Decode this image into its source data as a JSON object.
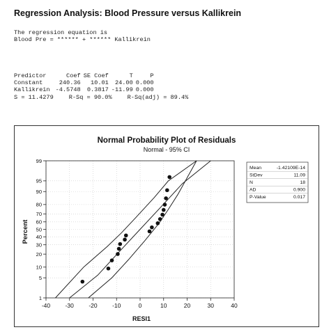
{
  "title": "Regression Analysis: Blood Pressure versus Kallikrein",
  "equation": {
    "line1": "The regression equation is",
    "line2": "Blood Pre = ****** + ****** Kallikrein"
  },
  "coef_table": {
    "headers": [
      "Predictor",
      "Coef",
      "SE Coef",
      "T",
      "P"
    ],
    "rows": [
      [
        "Constant",
        "240.36",
        "10.01",
        "24.00",
        "0.000"
      ],
      [
        "Kallikrein",
        "-4.5748",
        "0.3817",
        "-11.99",
        "0.000"
      ]
    ]
  },
  "model_stats": {
    "s": "S = 11.4279",
    "rsq": "R-Sq = 90.0%",
    "rsq_adj": "R-Sq(adj) = 89.4%"
  },
  "chart_data": {
    "type": "scatter",
    "title": "Normal Probability Plot of Residuals",
    "subtitle": "Normal - 95% CI",
    "xlabel": "RESI1",
    "ylabel": "Percent",
    "xlim": [
      -40,
      40
    ],
    "x_ticks": [
      "-40",
      "-30",
      "-20",
      "-10",
      "0",
      "10",
      "20",
      "30",
      "40"
    ],
    "y_scale": "normal probability",
    "y_ticks": [
      "1",
      "5",
      "10",
      "20",
      "30",
      "40",
      "50",
      "60",
      "70",
      "80",
      "90",
      "95",
      "99"
    ],
    "grid": true,
    "points": {
      "x": [
        -24.5,
        -13.5,
        -12,
        -9.5,
        -9,
        -8.5,
        -6.5,
        -6,
        4,
        5,
        7.5,
        8.5,
        9.5,
        10,
        10.5,
        11,
        11.5,
        12.5
      ],
      "y": [
        3.8,
        9.2,
        14.6,
        20.1,
        25.5,
        30.9,
        36.4,
        41.8,
        47.3,
        52.7,
        58.2,
        63.6,
        69.1,
        74.5,
        79.9,
        85.4,
        90.8,
        96.2
      ]
    },
    "ci_bands": {
      "lower": {
        "x": [
          -22,
          -12,
          -5,
          2,
          8,
          12,
          16,
          24
        ],
        "y": [
          1,
          5,
          15,
          35,
          58,
          75,
          88,
          99
        ]
      },
      "fit": {
        "x": [
          -30,
          -18,
          -9,
          0,
          9,
          18,
          30
        ],
        "y": [
          1,
          6,
          22,
          50,
          78,
          94,
          99
        ]
      },
      "upper": {
        "x": [
          -36,
          -24,
          -14,
          -8,
          -2,
          6,
          12,
          24
        ],
        "y": [
          1,
          10,
          28,
          45,
          65,
          86,
          95,
          99
        ]
      }
    },
    "legend": {
      "position": "right",
      "rows": [
        {
          "label": "Mean",
          "value": "-1.42109E-14"
        },
        {
          "label": "StDev",
          "value": "11.09"
        },
        {
          "label": "N",
          "value": "18"
        },
        {
          "label": "AD",
          "value": "0.900"
        },
        {
          "label": "P-Value",
          "value": "0.017"
        }
      ]
    }
  }
}
